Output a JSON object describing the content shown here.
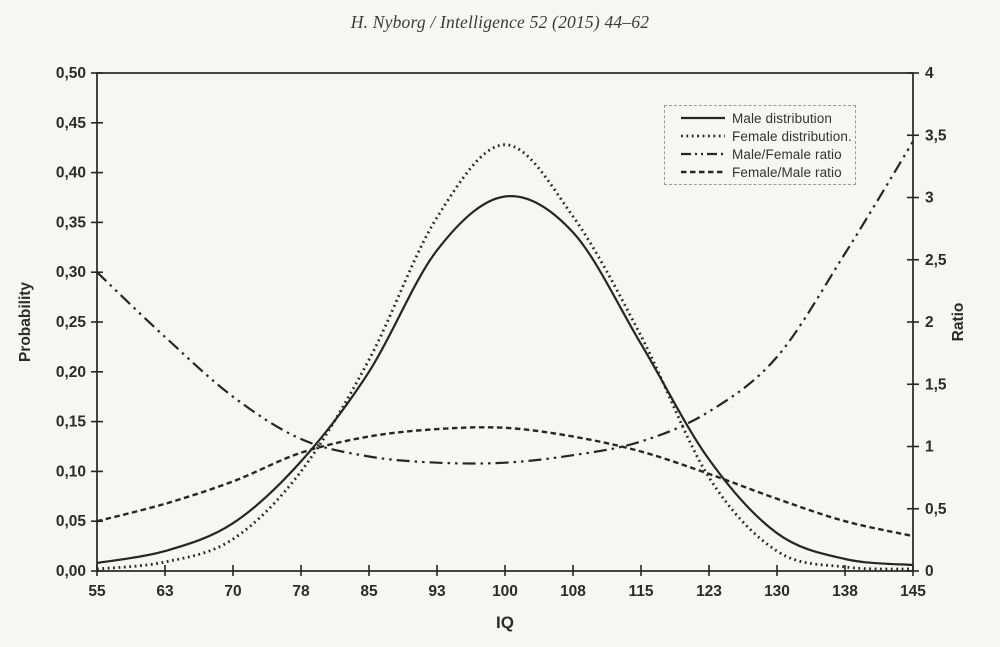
{
  "page": {
    "title": "H. Nyborg / Intelligence 52 (2015) 44–62",
    "ink_color": "#262626",
    "background_color": "#f6f6f4"
  },
  "chart_data": {
    "type": "line",
    "title": "",
    "xlabel": "IQ",
    "ylabel_left": "Probability",
    "ylabel_right": "Ratio",
    "grid": false,
    "legend_position": "top-right",
    "x_tick_labels": [
      "55",
      "63",
      "70",
      "78",
      "85",
      "93",
      "100",
      "108",
      "115",
      "123",
      "130",
      "138",
      "145"
    ],
    "y_left_tick_labels": [
      "0,00",
      "0,05",
      "0,10",
      "0,15",
      "0,20",
      "0,25",
      "0,30",
      "0,35",
      "0,40",
      "0,45",
      "0,50"
    ],
    "y_left_range": [
      0,
      0.5
    ],
    "y_right_tick_labels": [
      "0",
      "0,5",
      "1",
      "1,5",
      "2",
      "2,5",
      "3",
      "3,5",
      "4"
    ],
    "y_right_range": [
      0,
      4
    ],
    "categories": [
      55,
      63,
      70,
      78,
      85,
      93,
      100,
      108,
      115,
      123,
      130,
      138,
      145
    ],
    "series": [
      {
        "name": "Male distribution",
        "axis": "left",
        "style": "solid",
        "values": [
          0.008,
          0.02,
          0.048,
          0.11,
          0.2,
          0.322,
          0.376,
          0.34,
          0.228,
          0.112,
          0.038,
          0.012,
          0.006
        ]
      },
      {
        "name": "Female distribution.",
        "axis": "left",
        "style": "dotted",
        "values": [
          0.002,
          0.009,
          0.032,
          0.1,
          0.212,
          0.355,
          0.428,
          0.356,
          0.236,
          0.094,
          0.02,
          0.004,
          0.002
        ]
      },
      {
        "name": "Male/Female ratio",
        "axis": "right",
        "style": "dashdot",
        "values": [
          2.4,
          1.88,
          1.4,
          1.06,
          0.92,
          0.87,
          0.87,
          0.93,
          1.04,
          1.28,
          1.72,
          2.55,
          3.45
        ]
      },
      {
        "name": "Female/Male ratio",
        "axis": "right",
        "style": "dashed",
        "values": [
          0.4,
          0.54,
          0.72,
          0.95,
          1.08,
          1.14,
          1.15,
          1.08,
          0.96,
          0.78,
          0.58,
          0.4,
          0.28
        ]
      }
    ]
  }
}
